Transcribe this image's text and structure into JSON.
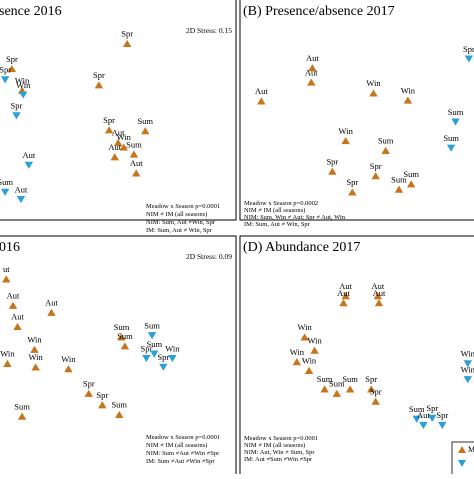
{
  "colors": {
    "nim": "#c8741a",
    "im": "#2aa0d8"
  },
  "marker_shapes": {
    "nim": "triangle-up",
    "im": "triangle-down"
  },
  "panels": [
    {
      "id": "A",
      "title": "sence 2016",
      "stress": "2D Stress: 0.15",
      "stats": [
        "Meadow x Season p=0.0001",
        "NIM ≠ IM (all seasons)",
        "NIM: Sum, Aut ≠Win, Spr",
        "IM: Sum, Aut ≠ Win, Spr"
      ],
      "chart_data": {
        "type": "scatter",
        "title": "sence 2016",
        "axes_visible": false,
        "points": [
          {
            "label": "Spr",
            "group": "nim",
            "x": 0.545,
            "y": 0.12
          },
          {
            "label": "Spr",
            "group": "nim",
            "x": 0.035,
            "y": 0.26
          },
          {
            "label": "Spr",
            "group": "im",
            "x": 0.005,
            "y": 0.32
          },
          {
            "label": "Spr",
            "group": "nim",
            "x": 0.42,
            "y": 0.35
          },
          {
            "label": "Win",
            "group": "nim",
            "x": 0.08,
            "y": 0.38
          },
          {
            "label": "Win",
            "group": "im",
            "x": 0.085,
            "y": 0.405
          },
          {
            "label": "Spr",
            "group": "im",
            "x": 0.055,
            "y": 0.52
          },
          {
            "label": "Spr",
            "group": "nim",
            "x": 0.465,
            "y": 0.6
          },
          {
            "label": "Sum",
            "group": "nim",
            "x": 0.625,
            "y": 0.605
          },
          {
            "label": "Aut",
            "group": "nim",
            "x": 0.505,
            "y": 0.67
          },
          {
            "label": "Win",
            "group": "nim",
            "x": 0.53,
            "y": 0.695
          },
          {
            "label": "Sum",
            "group": "nim",
            "x": 0.575,
            "y": 0.735
          },
          {
            "label": "Aut",
            "group": "nim",
            "x": 0.49,
            "y": 0.75
          },
          {
            "label": "Aut",
            "group": "im",
            "x": 0.11,
            "y": 0.795
          },
          {
            "label": "Aut",
            "group": "nim",
            "x": 0.585,
            "y": 0.84
          },
          {
            "label": "Sum",
            "group": "im",
            "x": 0.005,
            "y": 0.945
          },
          {
            "label": "Aut",
            "group": "im",
            "x": 0.075,
            "y": 0.985
          }
        ]
      }
    },
    {
      "id": "B",
      "title": "(B) Presence/absence 2017",
      "stress": "",
      "stats": [
        "Meadow x Season p=0.0002",
        "NIM ≠ IM (all seasons)",
        "NIM: Sum, Win ≠ Aut; Spr ≠ Aut, Win",
        "IM: Sum, Aut ≠ Win, Spr"
      ],
      "chart_data": {
        "type": "scatter",
        "title": "(B) Presence/absence 2017",
        "axes_visible": false,
        "points": [
          {
            "label": "Spr",
            "group": "im",
            "x": 0.995,
            "y": 0.205
          },
          {
            "label": "Aut",
            "group": "nim",
            "x": 0.29,
            "y": 0.255
          },
          {
            "label": "Aut",
            "group": "nim",
            "x": 0.285,
            "y": 0.335
          },
          {
            "label": "Aut",
            "group": "nim",
            "x": 0.06,
            "y": 0.44
          },
          {
            "label": "Win",
            "group": "nim",
            "x": 0.565,
            "y": 0.395
          },
          {
            "label": "Win",
            "group": "nim",
            "x": 0.72,
            "y": 0.435
          },
          {
            "label": "Win",
            "group": "nim",
            "x": 0.44,
            "y": 0.66
          },
          {
            "label": "Sum",
            "group": "nim",
            "x": 0.62,
            "y": 0.715
          },
          {
            "label": "Spr",
            "group": "nim",
            "x": 0.38,
            "y": 0.83
          },
          {
            "label": "Spr",
            "group": "nim",
            "x": 0.575,
            "y": 0.855
          },
          {
            "label": "Spr",
            "group": "nim",
            "x": 0.47,
            "y": 0.945
          },
          {
            "label": "Sum",
            "group": "nim",
            "x": 0.68,
            "y": 0.93
          },
          {
            "label": "Sum",
            "group": "nim",
            "x": 0.735,
            "y": 0.9
          },
          {
            "label": "Sum",
            "group": "im",
            "x": 0.935,
            "y": 0.555
          },
          {
            "label": "Sum",
            "group": "im",
            "x": 0.915,
            "y": 0.7
          }
        ]
      }
    },
    {
      "id": "C",
      "title": "016",
      "stress": "2D Stress: 0.09",
      "stats": [
        "Meadow x Season p=0.0001",
        "NIM ≠ IM (all seasons)",
        "NIM: Sum ≠Aut ≠Win ≠Spr",
        "IM: Sum ≠Aut ≠Win ≠Spr"
      ],
      "chart_data": {
        "type": "scatter",
        "title": "016",
        "axes_visible": false,
        "points": [
          {
            "label": "ut",
            "group": "nim",
            "x": 0.01,
            "y": 0.12
          },
          {
            "label": "Aut",
            "group": "nim",
            "x": 0.04,
            "y": 0.27
          },
          {
            "label": "Aut",
            "group": "nim",
            "x": 0.21,
            "y": 0.31
          },
          {
            "label": "Aut",
            "group": "nim",
            "x": 0.06,
            "y": 0.39
          },
          {
            "label": "Win",
            "group": "nim",
            "x": 0.135,
            "y": 0.52
          },
          {
            "label": "Win",
            "group": "nim",
            "x": 0.015,
            "y": 0.6
          },
          {
            "label": "Win",
            "group": "nim",
            "x": 0.14,
            "y": 0.62
          },
          {
            "label": "Win",
            "group": "nim",
            "x": 0.285,
            "y": 0.63
          },
          {
            "label": "Sum",
            "group": "nim",
            "x": 0.52,
            "y": 0.45
          },
          {
            "label": "Sum",
            "group": "nim",
            "x": 0.535,
            "y": 0.5
          },
          {
            "label": "Sum",
            "group": "im",
            "x": 0.655,
            "y": 0.44
          },
          {
            "label": "Spr",
            "group": "im",
            "x": 0.63,
            "y": 0.57
          },
          {
            "label": "Sum",
            "group": "im",
            "x": 0.665,
            "y": 0.545
          },
          {
            "label": "Win",
            "group": "im",
            "x": 0.745,
            "y": 0.57
          },
          {
            "label": "Spr",
            "group": "im",
            "x": 0.705,
            "y": 0.62
          },
          {
            "label": "Spr",
            "group": "nim",
            "x": 0.375,
            "y": 0.77
          },
          {
            "label": "Spr",
            "group": "nim",
            "x": 0.435,
            "y": 0.835
          },
          {
            "label": "Sum",
            "group": "nim",
            "x": 0.08,
            "y": 0.9
          },
          {
            "label": "Sum",
            "group": "nim",
            "x": 0.51,
            "y": 0.89
          }
        ]
      }
    },
    {
      "id": "D",
      "title": "(D) Abundance 2017",
      "stress": "",
      "stats": [
        "Meadow x Season p=0.0001",
        "NIM ≠ IM (all seasons)",
        "NIM: Aut, Win ≠ Sum, Spr",
        "IM: Aut ≠Sum ≠Win ≠Spr"
      ],
      "chart_data": {
        "type": "scatter",
        "title": "(D) Abundance 2017",
        "axes_visible": false,
        "points": [
          {
            "label": "Aut",
            "group": "nim",
            "x": 0.44,
            "y": 0.215
          },
          {
            "label": "Aut",
            "group": "nim",
            "x": 0.585,
            "y": 0.215
          },
          {
            "label": "Aut",
            "group": "nim",
            "x": 0.43,
            "y": 0.255
          },
          {
            "label": "Aut",
            "group": "nim",
            "x": 0.59,
            "y": 0.255
          },
          {
            "label": "Win",
            "group": "nim",
            "x": 0.255,
            "y": 0.45
          },
          {
            "label": "Win",
            "group": "nim",
            "x": 0.3,
            "y": 0.525
          },
          {
            "label": "Win",
            "group": "nim",
            "x": 0.22,
            "y": 0.59
          },
          {
            "label": "Win",
            "group": "nim",
            "x": 0.275,
            "y": 0.64
          },
          {
            "label": "Win",
            "group": "im",
            "x": 0.99,
            "y": 0.6
          },
          {
            "label": "Win",
            "group": "im",
            "x": 0.99,
            "y": 0.69
          },
          {
            "label": "Sum",
            "group": "nim",
            "x": 0.345,
            "y": 0.745
          },
          {
            "label": "Sum",
            "group": "nim",
            "x": 0.46,
            "y": 0.745
          },
          {
            "label": "Spr",
            "group": "nim",
            "x": 0.555,
            "y": 0.745
          },
          {
            "label": "Sum",
            "group": "nim",
            "x": 0.4,
            "y": 0.77
          },
          {
            "label": "Spr",
            "group": "nim",
            "x": 0.575,
            "y": 0.815
          },
          {
            "label": "Sum",
            "group": "im",
            "x": 0.76,
            "y": 0.915
          },
          {
            "label": "Spr",
            "group": "im",
            "x": 0.83,
            "y": 0.91
          },
          {
            "label": "Aut",
            "group": "im",
            "x": 0.79,
            "y": 0.95
          },
          {
            "label": "Spr",
            "group": "im",
            "x": 0.875,
            "y": 0.95
          }
        ]
      }
    }
  ],
  "legend_fragment": "M"
}
